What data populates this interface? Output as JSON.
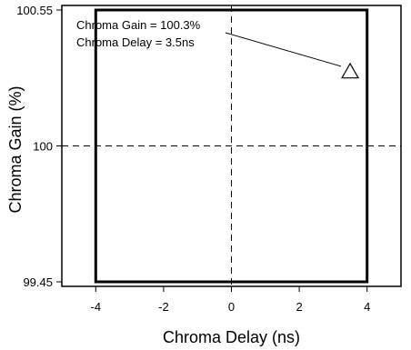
{
  "chart_data": {
    "type": "scatter",
    "title": "",
    "xlabel": "Chroma Delay (ns)",
    "ylabel": "Chroma Gain (%)",
    "xlim": [
      -5,
      5
    ],
    "ylim": [
      99.45,
      100.55
    ],
    "x_ticks": [
      {
        "value": -4,
        "label": "-4"
      },
      {
        "value": -2,
        "label": "-2"
      },
      {
        "value": 0,
        "label": "0"
      },
      {
        "value": 2,
        "label": "2"
      },
      {
        "value": 4,
        "label": "4"
      }
    ],
    "y_ticks": [
      {
        "value": 100.55,
        "label": "100.55"
      },
      {
        "value": 100,
        "label": "100"
      },
      {
        "value": 99.45,
        "label": "99.45"
      }
    ],
    "limit_box": {
      "x": [
        -4,
        4
      ],
      "y": [
        99.45,
        100.55
      ]
    },
    "reference_lines": {
      "x": 0,
      "y": 100
    },
    "points": [
      {
        "x": 3.5,
        "y": 100.3,
        "marker": "triangle-open"
      }
    ],
    "annotation": {
      "lines": [
        "Chroma Gain = 100.3%",
        "Chroma Delay = 3.5ns"
      ],
      "points_to": {
        "x": 3.5,
        "y": 100.3
      }
    },
    "grid": false,
    "legend": "none"
  }
}
